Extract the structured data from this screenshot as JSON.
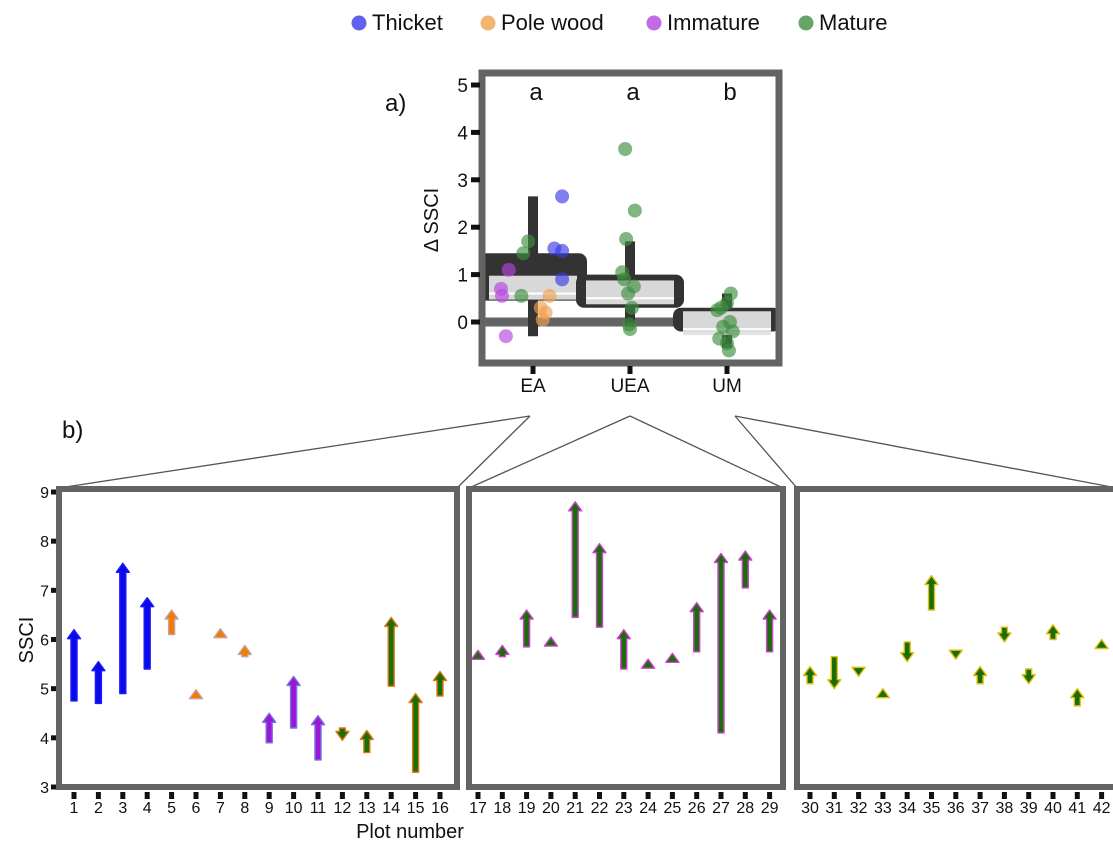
{
  "legend": [
    {
      "label": "Thicket",
      "color": "#3a3ae8"
    },
    {
      "label": "Pole wood",
      "color": "#f0a050"
    },
    {
      "label": "Immature",
      "color": "#b545e0"
    },
    {
      "label": "Mature",
      "color": "#3e8e3e"
    }
  ],
  "chart_data": [
    {
      "id": "a",
      "type": "box+scatter",
      "panel_label": "a)",
      "ylabel": "Δ SSCI",
      "categories": [
        "EA",
        "UEA",
        "UM"
      ],
      "significance_letters": [
        "a",
        "a",
        "b"
      ],
      "ylim": [
        -0.8,
        5.2
      ],
      "yticks": [
        0,
        1,
        2,
        3,
        4,
        5
      ],
      "reference_line": 0,
      "boxes": [
        {
          "category": "EA",
          "q1": 0.45,
          "median": 0.6,
          "q3": 1.45,
          "whisker_low": -0.3,
          "whisker_high": 2.65,
          "mean": 0.85
        },
        {
          "category": "UEA",
          "q1": 0.3,
          "median": 0.5,
          "q3": 1.0,
          "whisker_low": -0.1,
          "whisker_high": 1.7,
          "mean": 0.75
        },
        {
          "category": "UM",
          "q1": -0.2,
          "median": -0.15,
          "q3": 0.3,
          "whisker_low": -0.55,
          "whisker_high": 0.6,
          "mean": 0.1
        }
      ],
      "points": [
        {
          "category": "EA",
          "value": 2.65,
          "group": "Thicket",
          "jitter": 0.3
        },
        {
          "category": "EA",
          "value": 1.55,
          "group": "Thicket",
          "jitter": 0.22
        },
        {
          "category": "EA",
          "value": 1.5,
          "group": "Thicket",
          "jitter": 0.3
        },
        {
          "category": "EA",
          "value": 0.9,
          "group": "Thicket",
          "jitter": 0.3
        },
        {
          "category": "EA",
          "value": 0.55,
          "group": "Pole wood",
          "jitter": 0.17
        },
        {
          "category": "EA",
          "value": 0.3,
          "group": "Pole wood",
          "jitter": 0.08
        },
        {
          "category": "EA",
          "value": 0.2,
          "group": "Pole wood",
          "jitter": 0.13
        },
        {
          "category": "EA",
          "value": 0.05,
          "group": "Pole wood",
          "jitter": 0.1
        },
        {
          "category": "EA",
          "value": 1.1,
          "group": "Immature",
          "jitter": -0.25
        },
        {
          "category": "EA",
          "value": 0.7,
          "group": "Immature",
          "jitter": -0.33
        },
        {
          "category": "EA",
          "value": 0.55,
          "group": "Immature",
          "jitter": -0.32
        },
        {
          "category": "EA",
          "value": -0.3,
          "group": "Immature",
          "jitter": -0.28
        },
        {
          "category": "EA",
          "value": 1.7,
          "group": "Mature",
          "jitter": -0.05
        },
        {
          "category": "EA",
          "value": 1.45,
          "group": "Mature",
          "jitter": -0.1
        },
        {
          "category": "EA",
          "value": 0.55,
          "group": "Mature",
          "jitter": -0.12
        },
        {
          "category": "UEA",
          "value": 3.65,
          "group": "Mature",
          "jitter": -0.05
        },
        {
          "category": "UEA",
          "value": 2.35,
          "group": "Mature",
          "jitter": 0.05
        },
        {
          "category": "UEA",
          "value": 1.75,
          "group": "Mature",
          "jitter": -0.04
        },
        {
          "category": "UEA",
          "value": 1.05,
          "group": "Mature",
          "jitter": -0.08
        },
        {
          "category": "UEA",
          "value": 0.9,
          "group": "Mature",
          "jitter": -0.06
        },
        {
          "category": "UEA",
          "value": 0.75,
          "group": "Mature",
          "jitter": 0.04
        },
        {
          "category": "UEA",
          "value": 0.6,
          "group": "Mature",
          "jitter": -0.02
        },
        {
          "category": "UEA",
          "value": 0.3,
          "group": "Mature",
          "jitter": 0.02
        },
        {
          "category": "UEA",
          "value": -0.05,
          "group": "Mature",
          "jitter": -0.01
        },
        {
          "category": "UEA",
          "value": -0.15,
          "group": "Mature",
          "jitter": 0.0
        },
        {
          "category": "UM",
          "value": 0.6,
          "group": "Mature",
          "jitter": 0.04
        },
        {
          "category": "UM",
          "value": 0.4,
          "group": "Mature",
          "jitter": 0.0
        },
        {
          "category": "UM",
          "value": 0.3,
          "group": "Mature",
          "jitter": -0.06
        },
        {
          "category": "UM",
          "value": 0.25,
          "group": "Mature",
          "jitter": -0.1
        },
        {
          "category": "UM",
          "value": 0.0,
          "group": "Mature",
          "jitter": 0.03
        },
        {
          "category": "UM",
          "value": -0.1,
          "group": "Mature",
          "jitter": -0.04
        },
        {
          "category": "UM",
          "value": -0.2,
          "group": "Mature",
          "jitter": 0.06
        },
        {
          "category": "UM",
          "value": -0.35,
          "group": "Mature",
          "jitter": -0.08
        },
        {
          "category": "UM",
          "value": -0.45,
          "group": "Mature",
          "jitter": 0.0
        },
        {
          "category": "UM",
          "value": -0.6,
          "group": "Mature",
          "jitter": 0.02
        }
      ]
    },
    {
      "id": "b",
      "type": "arrow",
      "panel_label": "b)",
      "ylabel": "SSCI",
      "xlabel": "Plot number",
      "ylim": [
        3,
        9
      ],
      "yticks": [
        3,
        4,
        5,
        6,
        7,
        8,
        9
      ],
      "facets": [
        {
          "category": "EA",
          "plots": [
            {
              "plot": "1",
              "from": 4.75,
              "to": 6.2,
              "group": "Thicket"
            },
            {
              "plot": "2",
              "from": 4.7,
              "to": 5.55,
              "group": "Thicket"
            },
            {
              "plot": "3",
              "from": 4.9,
              "to": 7.55,
              "group": "Thicket"
            },
            {
              "plot": "4",
              "from": 5.4,
              "to": 6.85,
              "group": "Thicket"
            },
            {
              "plot": "5",
              "from": 6.1,
              "to": 6.6,
              "group": "Pole wood"
            },
            {
              "plot": "6",
              "from": 4.95,
              "to": 4.98,
              "group": "Pole wood"
            },
            {
              "plot": "7",
              "from": 6.15,
              "to": 6.22,
              "group": "Pole wood"
            },
            {
              "plot": "8",
              "from": 5.65,
              "to": 5.88,
              "group": "Pole wood"
            },
            {
              "plot": "9",
              "from": 3.9,
              "to": 4.5,
              "group": "Immature"
            },
            {
              "plot": "10",
              "from": 4.2,
              "to": 5.25,
              "group": "Immature"
            },
            {
              "plot": "11",
              "from": 3.55,
              "to": 4.45,
              "group": "Immature"
            },
            {
              "plot": "12",
              "from": 4.2,
              "to": 3.95,
              "group": "Mature"
            },
            {
              "plot": "13",
              "from": 3.7,
              "to": 4.15,
              "group": "Mature"
            },
            {
              "plot": "14",
              "from": 5.05,
              "to": 6.45,
              "group": "Mature"
            },
            {
              "plot": "15",
              "from": 3.3,
              "to": 4.9,
              "group": "Mature"
            },
            {
              "plot": "16",
              "from": 4.85,
              "to": 5.35,
              "group": "Mature"
            }
          ]
        },
        {
          "category": "UEA",
          "plots": [
            {
              "plot": "17",
              "from": 5.65,
              "to": 5.78,
              "group": "Mature"
            },
            {
              "plot": "18",
              "from": 5.65,
              "to": 5.88,
              "group": "Mature"
            },
            {
              "plot": "19",
              "from": 5.85,
              "to": 6.6,
              "group": "Mature"
            },
            {
              "plot": "20",
              "from": 5.95,
              "to": 6.05,
              "group": "Mature"
            },
            {
              "plot": "21",
              "from": 6.45,
              "to": 8.8,
              "group": "Mature"
            },
            {
              "plot": "22",
              "from": 6.25,
              "to": 7.95,
              "group": "Mature"
            },
            {
              "plot": "23",
              "from": 5.4,
              "to": 6.2,
              "group": "Mature"
            },
            {
              "plot": "24",
              "from": 5.5,
              "to": 5.6,
              "group": "Mature"
            },
            {
              "plot": "25",
              "from": 5.65,
              "to": 5.72,
              "group": "Mature"
            },
            {
              "plot": "26",
              "from": 5.75,
              "to": 6.75,
              "group": "Mature"
            },
            {
              "plot": "27",
              "from": 4.1,
              "to": 7.75,
              "group": "Mature"
            },
            {
              "plot": "28",
              "from": 7.05,
              "to": 7.8,
              "group": "Mature"
            },
            {
              "plot": "29",
              "from": 5.75,
              "to": 6.6,
              "group": "Mature"
            }
          ]
        },
        {
          "category": "UM",
          "plots": [
            {
              "plot": "30",
              "from": 5.1,
              "to": 5.45,
              "group": "Mature"
            },
            {
              "plot": "31",
              "from": 5.65,
              "to": 5.0,
              "group": "Mature"
            },
            {
              "plot": "32",
              "from": 5.35,
              "to": 5.25,
              "group": "Mature"
            },
            {
              "plot": "33",
              "from": 4.9,
              "to": 5.0,
              "group": "Mature"
            },
            {
              "plot": "34",
              "from": 5.95,
              "to": 5.55,
              "group": "Mature"
            },
            {
              "plot": "35",
              "from": 6.6,
              "to": 7.3,
              "group": "Mature"
            },
            {
              "plot": "36",
              "from": 5.75,
              "to": 5.6,
              "group": "Mature"
            },
            {
              "plot": "37",
              "from": 5.1,
              "to": 5.45,
              "group": "Mature"
            },
            {
              "plot": "38",
              "from": 6.25,
              "to": 5.95,
              "group": "Mature"
            },
            {
              "plot": "39",
              "from": 5.4,
              "to": 5.1,
              "group": "Mature"
            },
            {
              "plot": "40",
              "from": 6.0,
              "to": 6.3,
              "group": "Mature"
            },
            {
              "plot": "41",
              "from": 4.65,
              "to": 5.0,
              "group": "Mature"
            },
            {
              "plot": "42",
              "from": 5.9,
              "to": 6.0,
              "group": "Mature"
            }
          ]
        }
      ]
    }
  ],
  "arrow_styles": {
    "Thicket": {
      "fill": "#0a0ae6",
      "edge": "#1a1aff"
    },
    "Pole wood": {
      "fill": "#f07d00",
      "edge": "#c8a0a0"
    },
    "Immature": {
      "fill": "#9c16d4",
      "edge": "#7070e0"
    },
    "Mature": {
      "fill": "#1a6e0a",
      "edges": {
        "EA": "#e07a10",
        "UEA": "#d040d0",
        "UM": "#e0c010"
      }
    }
  },
  "colors": {
    "frame": "#636363",
    "box_fill": "#333333",
    "box_mean_fill": "#e2e2e2",
    "connector": "#555555"
  }
}
